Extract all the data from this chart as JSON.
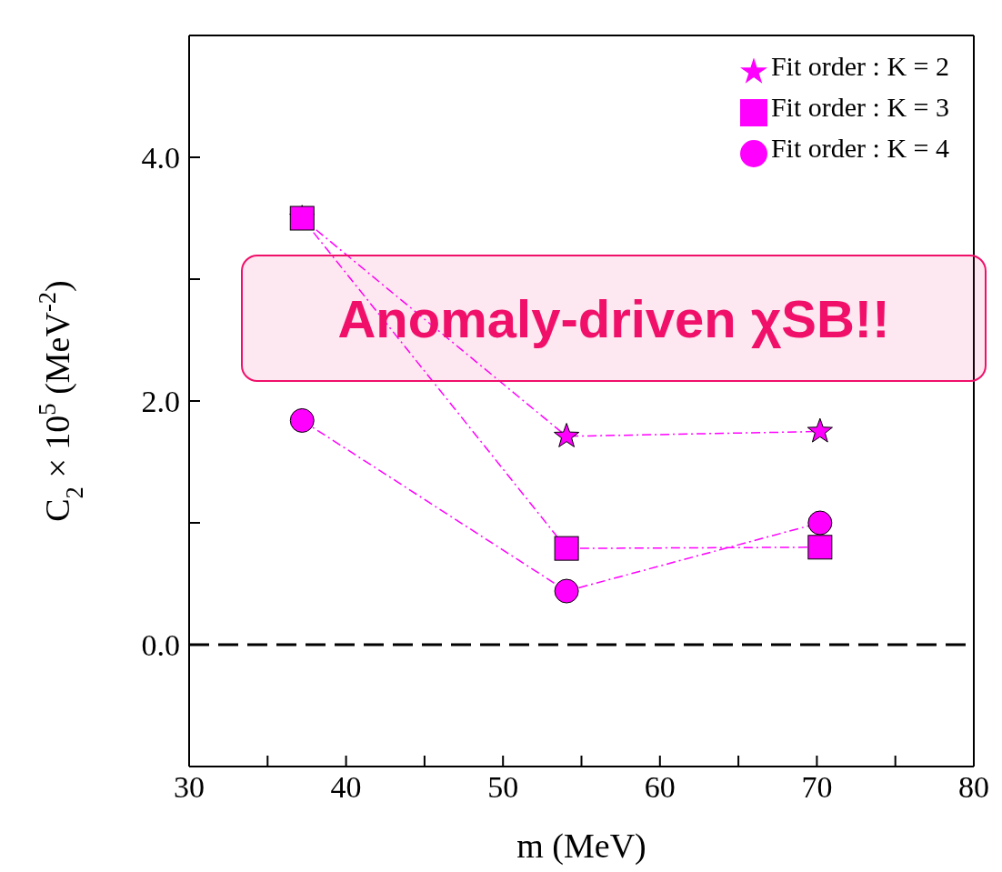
{
  "chart_data": {
    "type": "line",
    "xlabel": "m (MeV)",
    "ylabel": "C$_{2}$ × 10$^{5}$ (MeV$^{-2}$)",
    "x": [
      37.2,
      54.05,
      70.2
    ],
    "series": [
      {
        "name": "Fit order : K = 2",
        "color": "#ff00ff",
        "marker": "star",
        "values": [
          3.5,
          1.71,
          1.75
        ]
      },
      {
        "name": "Fit order : K = 3",
        "color": "#ff00ff",
        "marker": "square",
        "values": [
          3.5,
          0.79,
          0.8
        ]
      },
      {
        "name": "Fit order : K = 4",
        "color": "#ff00ff",
        "marker": "circle",
        "values": [
          1.84,
          0.44,
          1.0
        ]
      }
    ],
    "line_style": "dashed",
    "xlim": [
      30,
      80
    ],
    "xticks": [
      30,
      {
        "value": 35,
        "label": null
      },
      40,
      {
        "value": 45,
        "label": null
      },
      50,
      {
        "value": 55,
        "label": null
      },
      60,
      {
        "value": 65,
        "label": null
      },
      70,
      {
        "value": 75,
        "label": null
      },
      80
    ],
    "ylim": [
      -1.0,
      5.0
    ],
    "yticks": [
      {
        "value": 0,
        "label": "0.0"
      },
      {
        "value": 1,
        "label": null
      },
      {
        "value": 2,
        "label": "2.0"
      },
      {
        "value": 3,
        "label": null
      },
      {
        "value": 4,
        "label": "4.0"
      }
    ],
    "ref_lines": [
      {
        "axis": "y",
        "value": 0,
        "color": "#000000",
        "line_style": "dashed"
      }
    ],
    "annotations": [
      "Anomaly-driven χSB!!"
    ],
    "legend": "top right",
    "grid": false
  }
}
